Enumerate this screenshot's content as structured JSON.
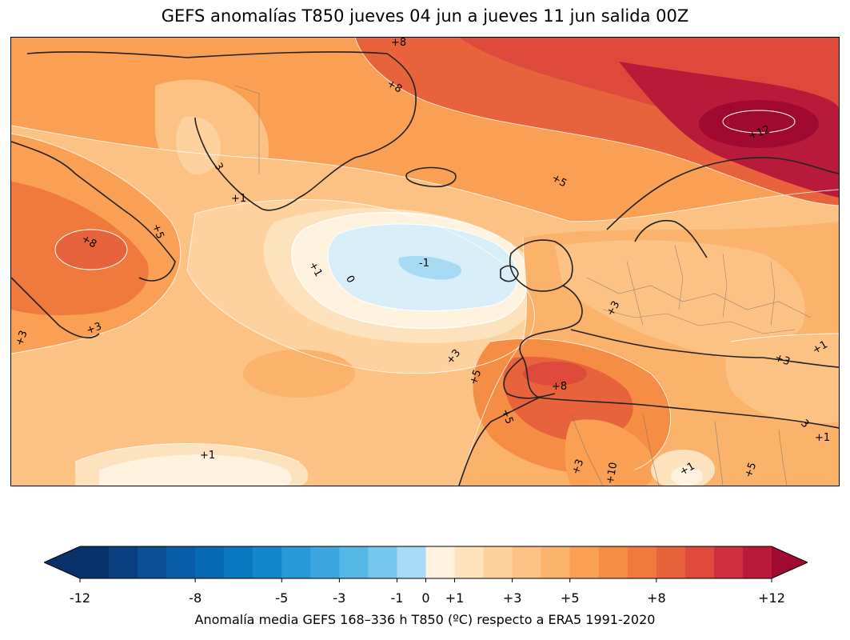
{
  "title": "GEFS anomalías T850 jueves 04 jun a jueves 11 jun salida 00Z",
  "map": {
    "contour_labels": [
      {
        "text": "+8",
        "region": "north-greenland"
      },
      {
        "text": "+8",
        "region": "greenland-east"
      },
      {
        "text": "3",
        "region": "greenland-south"
      },
      {
        "text": "+1",
        "region": "greenland-south-tip"
      },
      {
        "text": "+5",
        "region": "north-sea"
      },
      {
        "text": "+12",
        "region": "barents-sea"
      },
      {
        "text": "+5",
        "region": "labrador"
      },
      {
        "text": "+8",
        "region": "labrador-core"
      },
      {
        "text": "+1",
        "region": "mid-atlantic"
      },
      {
        "text": "0",
        "region": "mid-atlantic"
      },
      {
        "text": "-1",
        "region": "cold-anomaly-center"
      },
      {
        "text": "+3",
        "region": "newfoundland"
      },
      {
        "text": "+3",
        "region": "nova-scotia"
      },
      {
        "text": "+3",
        "region": "france"
      },
      {
        "text": "+3",
        "region": "iberia-offshore"
      },
      {
        "text": "+5",
        "region": "morocco-offshore"
      },
      {
        "text": "+8",
        "region": "algeria"
      },
      {
        "text": "+5",
        "region": "western-sahara"
      },
      {
        "text": "+3",
        "region": "eastern-mediterranean"
      },
      {
        "text": "+1",
        "region": "turkey"
      },
      {
        "text": "3",
        "region": "egypt"
      },
      {
        "text": "+1",
        "region": "red-sea"
      },
      {
        "text": "+1",
        "region": "subtropical-atlantic"
      },
      {
        "text": "+3",
        "region": "sahara-west"
      },
      {
        "text": "+10",
        "region": "sahara-central"
      },
      {
        "text": "+1",
        "region": "sahara-east"
      },
      {
        "text": "+5",
        "region": "sudan"
      }
    ]
  },
  "colorbar": {
    "levels": [
      -12,
      -11,
      -10,
      -9,
      -8,
      -7,
      -6,
      -5,
      -4,
      -3,
      -2,
      -1,
      0,
      1,
      2,
      3,
      4,
      5,
      6,
      7,
      8,
      9,
      10,
      11,
      12
    ],
    "colors": [
      "#08306b",
      "#0a3f7f",
      "#0c4f94",
      "#0a5ca6",
      "#0869b4",
      "#0a77c1",
      "#1387cc",
      "#2898d6",
      "#3ba7de",
      "#55b7e6",
      "#77c6ee",
      "#a6dbf3",
      "#d8eef9",
      "#fff3e0",
      "#fde3bd",
      "#fdd29f",
      "#fcc283",
      "#fbb26b",
      "#f9a054",
      "#f68d45",
      "#f07a3e",
      "#e8623c",
      "#dd4a3c",
      "#cc3040",
      "#b81a3a",
      "#a10a30"
    ],
    "under_color": "#08306b",
    "over_color": "#a10a30",
    "tick_labels": [
      "-12",
      "-8",
      "-5",
      "-3",
      "-1",
      "0",
      "+1",
      "+3",
      "+5",
      "+8",
      "+12"
    ],
    "caption": "Anomalía media GEFS 168–336 h T850 (ºC) respecto a ERA5 1991-2020"
  }
}
